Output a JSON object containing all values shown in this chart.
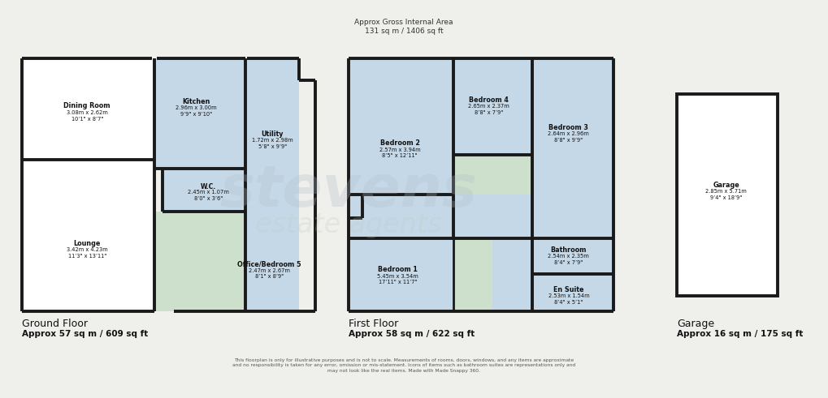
{
  "bg_color": "#efefeb",
  "wall_color": "#1a1a1a",
  "white": "#ffffff",
  "blue": "#c5d8e8",
  "green": "#cce0cc",
  "title1": "Approx Gross Internal Area",
  "title2": "131 sq m / 1406 sq ft",
  "gf_label": "Ground Floor",
  "gf_area": "Approx 57 sq m / 609 sq ft",
  "ff_label": "First Floor",
  "ff_area": "Approx 58 sq m / 622 sq ft",
  "gg_label": "Garage",
  "gg_area": "Approx 16 sq m / 175 sq ft",
  "disclaimer": "This floorplan is only for illustrative purposes and is not to scale. Measurements of rooms, doors, windows, and any items are approximate\nand no responsibility is taken for any error, omission or mis-statement. Icons of items such as bathroom suites are representations only and\nmay not look like the real items. Made with Made Snappy 360.",
  "rooms": {
    "dining_room": {
      "label": "Dining Room",
      "dims": "3.08m x 2.62m\n10’1\" x 8’7\""
    },
    "kitchen": {
      "label": "Kitchen",
      "dims": "2.96m x 3.00m\n9’9\" x 9’10\""
    },
    "utility": {
      "label": "Utility",
      "dims": "1.72m x 2.98m\n5’8\" x 9’9\""
    },
    "wc": {
      "label": "W.C.",
      "dims": "2.45m x 1.07m\n8’0\" x 3’6\""
    },
    "lounge": {
      "label": "Lounge",
      "dims": "3.42m x 4.23m\n11’3\" x 13’11\""
    },
    "office": {
      "label": "Office/Bedroom 5",
      "dims": "2.47m x 2.67m\n8’1\" x 8’9\""
    },
    "bedroom1": {
      "label": "Bedroom 1",
      "dims": "5.45m x 3.54m\n17’11\" x 11’7\""
    },
    "bedroom2": {
      "label": "Bedroom 2",
      "dims": "2.57m x 3.94m\n8’5\" x 12’11\""
    },
    "bedroom3": {
      "label": "Bedroom 3",
      "dims": "2.64m x 2.96m\n8’8\" x 9’9\""
    },
    "bedroom4": {
      "label": "Bedroom 4",
      "dims": "2.65m x 2.37m\n8’8\" x 7’9\""
    },
    "bathroom": {
      "label": "Bathroom",
      "dims": "2.54m x 2.35m\n8’4\" x 7’9\""
    },
    "ensuite": {
      "label": "En Suite",
      "dims": "2.53m x 1.54m\n8’4\" x 5’1\""
    },
    "garage": {
      "label": "Garage",
      "dims": "2.85m x 5.71m\n9’4\" x 18’9\""
    }
  }
}
